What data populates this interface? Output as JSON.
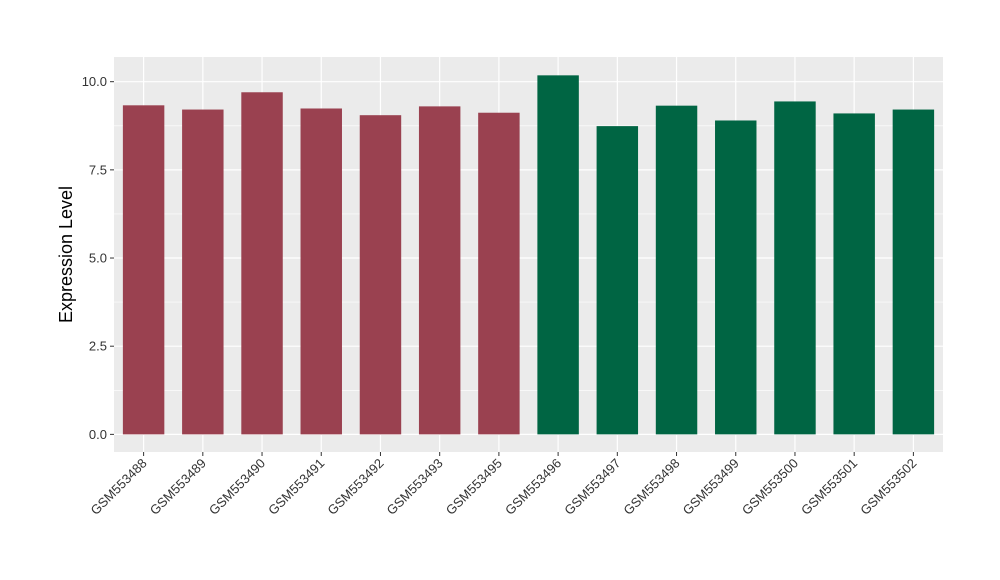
{
  "chart_data": {
    "type": "bar",
    "title": "",
    "xlabel": "",
    "ylabel": "Expression Level",
    "ylim": [
      -0.5,
      10.7
    ],
    "yticks": [
      0.0,
      2.5,
      5.0,
      7.5,
      10.0
    ],
    "ytick_labels": [
      "0.0",
      "2.5",
      "5.0",
      "7.5",
      "10.0"
    ],
    "grid": true,
    "categories": [
      "GSM553488",
      "GSM553489",
      "GSM553490",
      "GSM553491",
      "GSM553492",
      "GSM553493",
      "GSM553495",
      "GSM553496",
      "GSM553497",
      "GSM553498",
      "GSM553499",
      "GSM553500",
      "GSM553501",
      "GSM553502"
    ],
    "values": [
      9.33,
      9.21,
      9.7,
      9.24,
      9.05,
      9.3,
      9.12,
      10.18,
      8.74,
      9.32,
      8.9,
      9.44,
      9.1,
      9.21
    ],
    "colors": [
      "#9a4150",
      "#9a4150",
      "#9a4150",
      "#9a4150",
      "#9a4150",
      "#9a4150",
      "#9a4150",
      "#006543",
      "#006543",
      "#006543",
      "#006543",
      "#006543",
      "#006543",
      "#006543"
    ],
    "panel_background": "#ebebeb",
    "gridline_color": "#ffffff"
  }
}
